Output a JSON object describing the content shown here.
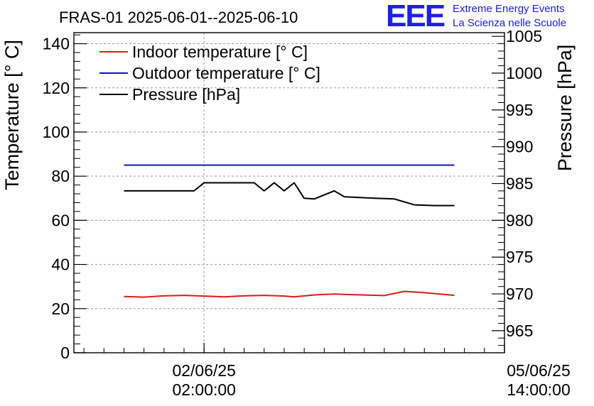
{
  "logo": {
    "mark": "EEE",
    "line1": "Extreme Energy Events",
    "line2": "La Scienza nelle Scuole"
  },
  "chart_data": {
    "type": "line",
    "title": "FRAS-01 2025-06-01--2025-06-10",
    "ylabel_left": "Temperature [° C]",
    "ylabel_right": "Pressure [hPa]",
    "ylim_left": [
      0,
      145
    ],
    "ylim_right": [
      962,
      1005.5
    ],
    "yticks_left": [
      0,
      20,
      40,
      60,
      80,
      100,
      120,
      140
    ],
    "yticks_right": [
      965,
      970,
      975,
      980,
      985,
      990,
      995,
      1000,
      1005
    ],
    "xticks": [
      {
        "t": 26,
        "date": "02/06/25",
        "time": "02:00:00"
      },
      {
        "t": 86,
        "date": "05/06/25",
        "time": "14:00:00"
      }
    ],
    "xlim": [
      0,
      86
    ],
    "grid": true,
    "legend": [
      "Indoor temperature [° C]",
      "Outdoor temperature [° C]",
      "Pressure [hPa]"
    ],
    "series": [
      {
        "name": "Indoor temperature [° C]",
        "color": "#e01a1a",
        "axis": "left",
        "x": [
          10,
          14,
          18,
          22,
          26,
          30,
          34,
          38,
          42,
          44,
          48,
          52,
          56,
          62,
          66,
          70,
          76
        ],
        "y": [
          25.5,
          25.2,
          25.8,
          26.0,
          25.7,
          25.3,
          25.8,
          26.0,
          25.7,
          25.3,
          26.2,
          26.6,
          26.3,
          25.9,
          27.8,
          27.2,
          26.0
        ]
      },
      {
        "name": "Outdoor temperature [° C]",
        "color": "#1414c8",
        "axis": "left",
        "x": [
          10,
          76
        ],
        "y": [
          85,
          85
        ]
      },
      {
        "name": "Pressure [hPa]",
        "color": "#000000",
        "axis": "right",
        "x": [
          10,
          12,
          24,
          26,
          36,
          38,
          40,
          42,
          44,
          46,
          48,
          52,
          54,
          60,
          64,
          68,
          72,
          76
        ],
        "y": [
          984.0,
          984.0,
          984.0,
          985.1,
          985.1,
          984.0,
          985.1,
          984.0,
          985.1,
          983.0,
          982.9,
          984.0,
          983.2,
          983.0,
          982.9,
          982.1,
          982.0,
          982.0
        ]
      }
    ]
  }
}
